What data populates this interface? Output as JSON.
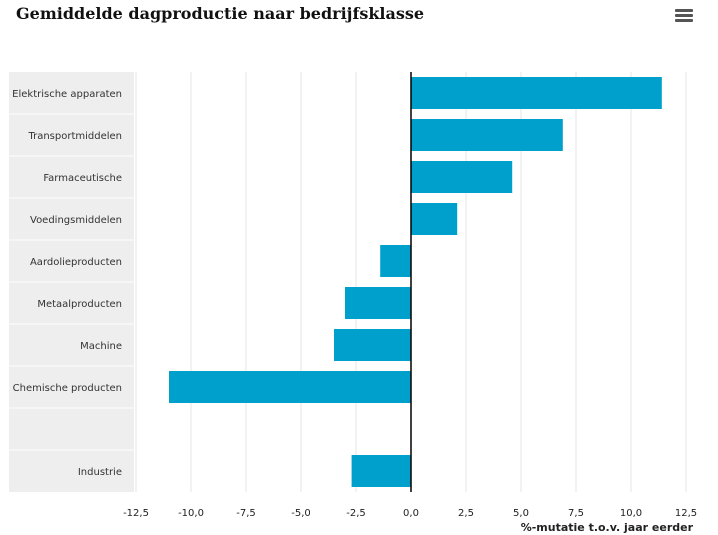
{
  "chart_title": "Gemiddelde dagproductie naar bedrijfsklasse",
  "menu_icon": "hamburger-menu-icon",
  "colors": {
    "bar": "#00A0CC",
    "category_band": "#EEEEEE",
    "grid": "#E6E6E6",
    "zero_line": "#000000"
  },
  "chart_data": {
    "type": "bar",
    "orientation": "horizontal",
    "title": "Gemiddelde dagproductie naar bedrijfsklasse",
    "xlabel": "%-mutatie t.o.v. jaar eerder",
    "ylabel": "",
    "xlim": [
      -12.5,
      12.5
    ],
    "x_ticks": [
      "-12,5",
      "-10,0",
      "-7,5",
      "-5,0",
      "-2,5",
      "0,0",
      "2,5",
      "5,0",
      "7,5",
      "10,0",
      "12,5"
    ],
    "grid": true,
    "categories": [
      "Elektrische apparaten",
      "Transportmiddelen",
      "Farmaceutische",
      "Voedingsmiddelen",
      "Aardolieproducten",
      "Metaalproducten",
      "Machine",
      "Chemische producten",
      "",
      "Industrie"
    ],
    "values": [
      11.4,
      6.9,
      4.6,
      2.1,
      -1.4,
      -3.0,
      -3.5,
      -11.0,
      null,
      -2.7
    ]
  }
}
